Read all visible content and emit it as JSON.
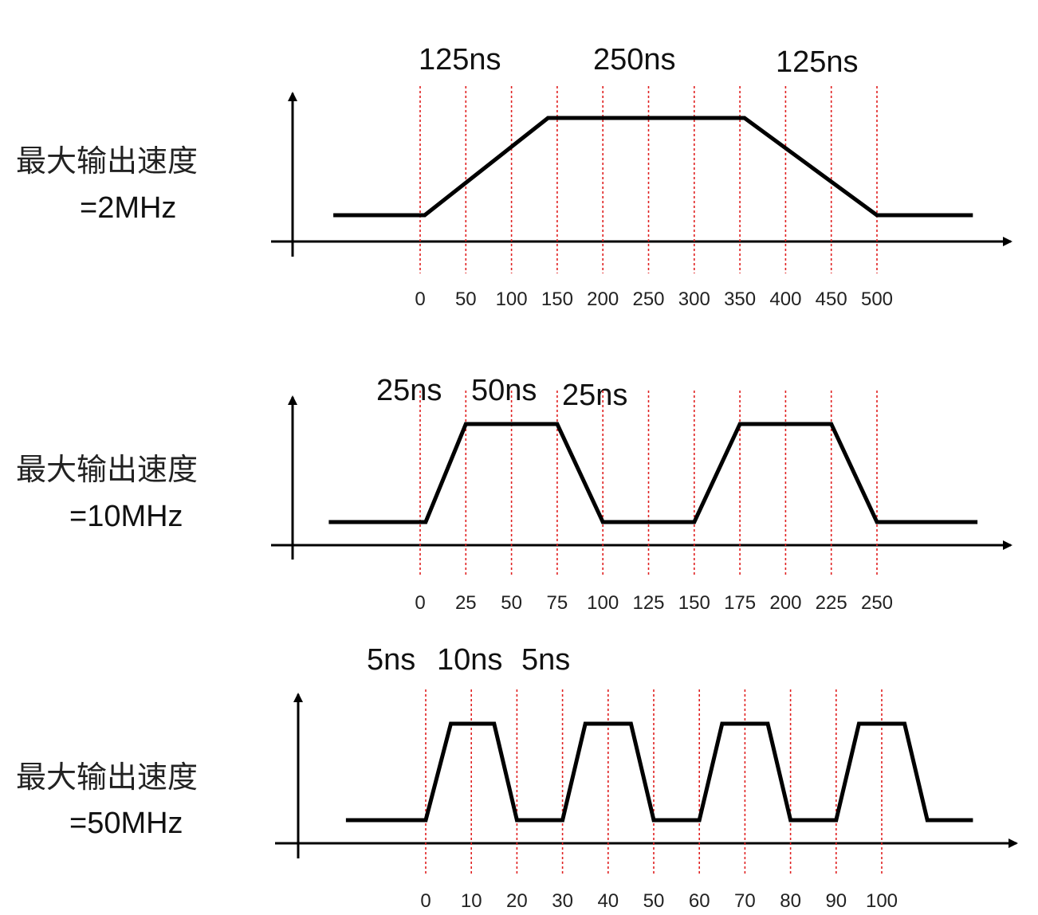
{
  "panels": [
    {
      "label": "最大输出速度",
      "freq": "=2MHz",
      "segments": [
        "125ns",
        "250ns",
        "125ns"
      ],
      "ticks": [
        "0",
        "50",
        "100",
        "150",
        "200",
        "250",
        "300",
        "350",
        "400",
        "450",
        "500"
      ],
      "waveform": [
        [
          -95,
          0
        ],
        [
          5,
          0
        ],
        [
          140,
          1
        ],
        [
          355,
          1
        ],
        [
          500,
          0
        ],
        [
          605,
          0
        ]
      ]
    },
    {
      "label": "最大输出速度",
      "freq": "=10MHz",
      "segments": [
        "25ns",
        "50ns",
        "25ns"
      ],
      "ticks": [
        "0",
        "25",
        "50",
        "75",
        "100",
        "125",
        "150",
        "175",
        "200",
        "225",
        "250"
      ],
      "waveform": [
        [
          -50,
          0
        ],
        [
          3,
          0
        ],
        [
          25,
          1
        ],
        [
          75,
          1
        ],
        [
          100,
          0
        ],
        [
          150,
          0
        ],
        [
          175,
          1
        ],
        [
          225,
          1
        ],
        [
          250,
          0
        ],
        [
          305,
          0
        ]
      ]
    },
    {
      "label": "最大输出速度",
      "freq": "=50MHz",
      "segments": [
        "5ns",
        "10ns",
        "5ns"
      ],
      "ticks": [
        "0",
        "10",
        "20",
        "30",
        "40",
        "50",
        "60",
        "70",
        "80",
        "90",
        "100"
      ],
      "waveform": [
        [
          -17.5,
          0
        ],
        [
          0,
          0
        ],
        [
          5.5,
          1
        ],
        [
          15,
          1
        ],
        [
          20,
          0
        ],
        [
          30,
          0
        ],
        [
          35,
          1
        ],
        [
          45,
          1
        ],
        [
          50,
          0
        ],
        [
          60,
          0
        ],
        [
          65,
          1
        ],
        [
          75,
          1
        ],
        [
          80,
          0
        ],
        [
          90,
          0
        ],
        [
          95,
          1
        ],
        [
          105,
          1
        ],
        [
          110,
          0
        ],
        [
          120,
          0
        ]
      ]
    }
  ]
}
